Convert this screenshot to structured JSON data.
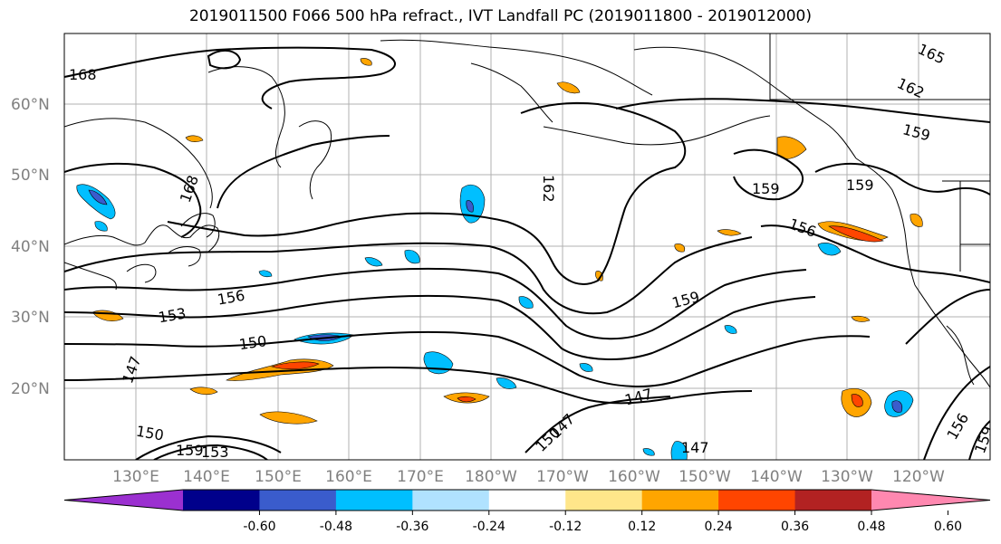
{
  "title": "2019011500 F066 500 hPa refract., IVT Landfall PC (2019011800 - 2019012000)",
  "lat_labels": [
    "60°N",
    "50°N",
    "40°N",
    "30°N",
    "20°N"
  ],
  "lon_labels": [
    "130°E",
    "140°E",
    "150°E",
    "160°E",
    "170°E",
    "180°W",
    "170°W",
    "160°W",
    "150°W",
    "140°W",
    "130°W",
    "120°W"
  ],
  "contour_labels": [
    "168",
    "168",
    "165",
    "162",
    "162",
    "159",
    "159",
    "159",
    "156",
    "159",
    "156",
    "153",
    "150",
    "147",
    "147",
    "147",
    "150",
    "147",
    "156",
    "159",
    "159",
    "153",
    "150"
  ],
  "colorbar": {
    "ticks": [
      "-0.60",
      "-0.48",
      "-0.36",
      "-0.24",
      "-0.12",
      "0.12",
      "0.24",
      "0.36",
      "0.48",
      "0.60"
    ],
    "colors": [
      "#9b30d0",
      "#00008b",
      "#3a5ccc",
      "#00bfff",
      "#b0e2ff",
      "#ffffff",
      "#ffe68a",
      "#ffa500",
      "#ff4500",
      "#b22222",
      "#ff88b0"
    ]
  }
}
